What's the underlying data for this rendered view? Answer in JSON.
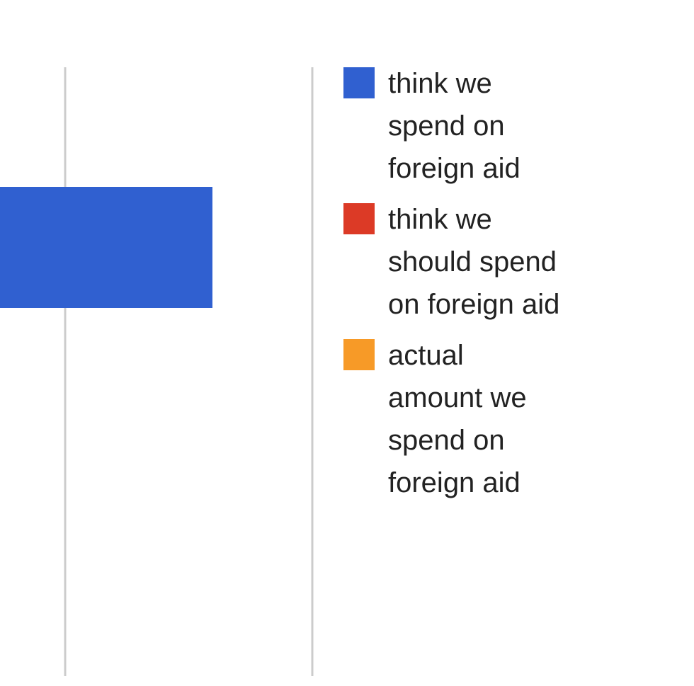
{
  "chart_data": {
    "type": "bar",
    "orientation": "horizontal",
    "legend_position": "right",
    "grid": true,
    "series": [
      {
        "name": "think we spend on foreign aid",
        "color": "#3060D0"
      },
      {
        "name": "think we should spend on foreign aid",
        "color": "#DC3A26"
      },
      {
        "name": "actual amount we spend on foreign aid",
        "color": "#F79A27"
      }
    ],
    "visible_bars": [
      {
        "series": "think we spend on foreign aid",
        "visible_extent": "clipped at left edge, ends between first and second gridline"
      }
    ]
  }
}
